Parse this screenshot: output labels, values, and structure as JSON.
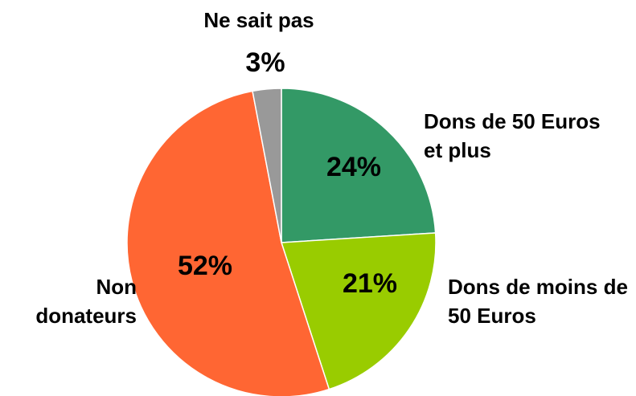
{
  "chart_data": {
    "type": "pie",
    "categories": [
      "Dons de 50 Euros et plus",
      "Dons de moins de 50 Euros",
      "Non donateurs",
      "Ne sait pas"
    ],
    "values": [
      24,
      21,
      52,
      3
    ],
    "value_labels": [
      "24%",
      "21%",
      "52%",
      "3%"
    ],
    "colors": [
      "#339966",
      "#99cc00",
      "#ff6633",
      "#999999"
    ]
  }
}
